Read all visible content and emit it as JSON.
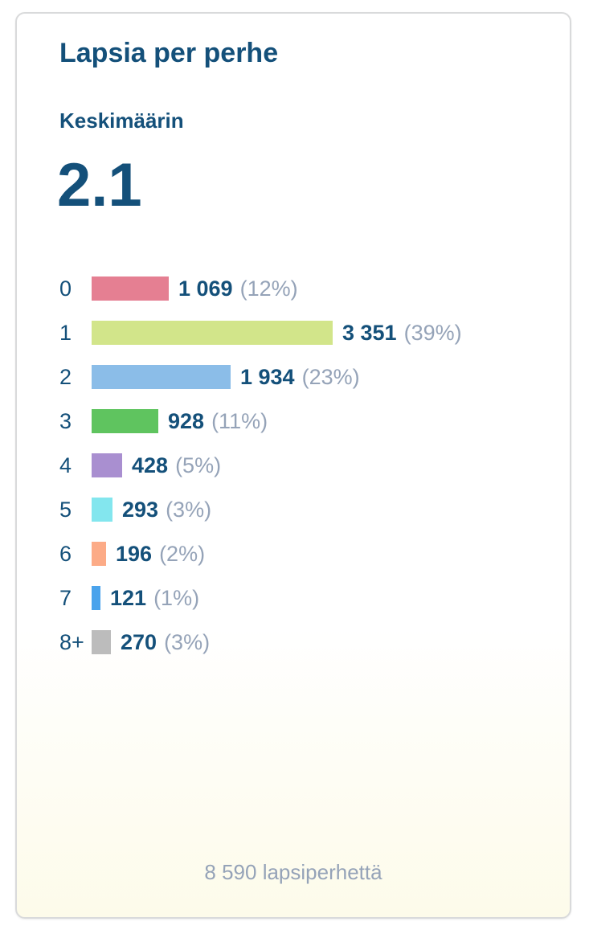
{
  "card": {
    "title": "Lapsia per perhe",
    "average_label": "Keskimäärin",
    "average_value": "2.1",
    "footer": "8 590 lapsiperhettä"
  },
  "chart_data": {
    "type": "bar",
    "orientation": "horizontal",
    "categories": [
      "0",
      "1",
      "2",
      "3",
      "4",
      "5",
      "6",
      "7",
      "8+"
    ],
    "values": [
      1069,
      3351,
      1934,
      928,
      428,
      293,
      196,
      121,
      270
    ],
    "value_labels": [
      "1 069",
      "3 351",
      "1 934",
      "928",
      "428",
      "293",
      "196",
      "121",
      "270"
    ],
    "percent_labels": [
      "(12%)",
      "(39%)",
      "(23%)",
      "(11%)",
      "(5%)",
      "(3%)",
      "(2%)",
      "(1%)",
      "(3%)"
    ],
    "colors": [
      "#e57f92",
      "#d2e58a",
      "#8bbde8",
      "#5fc45f",
      "#a98fd0",
      "#83e6ee",
      "#fcab87",
      "#4aa3ec",
      "#bcbcbc"
    ],
    "xlim": [
      0,
      3351
    ],
    "grid": false,
    "legend": "none"
  }
}
